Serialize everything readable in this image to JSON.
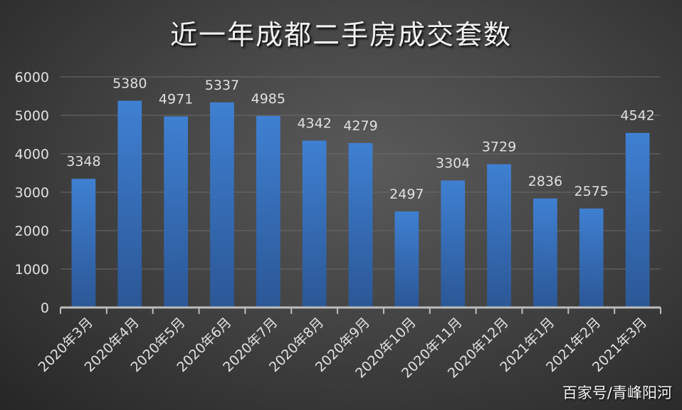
{
  "chart_data": {
    "type": "bar",
    "title": "近一年成都二手房成交套数",
    "categories": [
      "2020年3月",
      "2020年4月",
      "2020年5月",
      "2020年6月",
      "2020年7月",
      "2020年8月",
      "2020年9月",
      "2020年10月",
      "2020年11月",
      "2020年12月",
      "2021年1月",
      "2021年2月",
      "2021年3月"
    ],
    "values": [
      3348,
      5380,
      4971,
      5337,
      4985,
      4342,
      4279,
      2497,
      3304,
      3729,
      2836,
      2575,
      4542
    ],
    "ylim": [
      0,
      6000
    ],
    "yticks": [
      0,
      1000,
      2000,
      3000,
      4000,
      5000,
      6000
    ],
    "grid": true,
    "data_labels": true,
    "colors": {
      "bar_top": "#3f80d2",
      "bar_bottom": "#2b5796",
      "text": "#e0e0e0"
    }
  },
  "watermark": "百家号/青峰阳河"
}
